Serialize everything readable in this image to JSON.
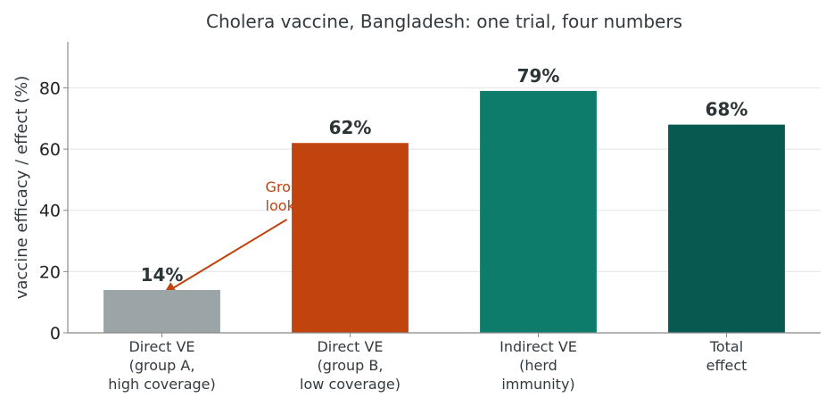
{
  "chart_data": {
    "type": "bar",
    "title": "Cholera vaccine, Bangladesh: one trial, four numbers",
    "ylabel": "vaccine efficacy / effect (%)",
    "xlabel": "",
    "ylim": [
      0,
      95
    ],
    "yticks": [
      0,
      20,
      40,
      60,
      80
    ],
    "grid": "horizontal",
    "categories": [
      [
        "Direct VE",
        "(group A,",
        "high coverage)"
      ],
      [
        "Direct VE",
        "(group B,",
        "low coverage)"
      ],
      [
        "Indirect VE",
        "(herd",
        "immunity)"
      ],
      [
        "Total",
        "effect"
      ]
    ],
    "values": [
      14,
      62,
      79,
      68
    ],
    "value_labels": [
      "14%",
      "62%",
      "79%",
      "68%"
    ],
    "colors": [
      "#9ba4a6",
      "#c1440e",
      "#0e7c6b",
      "#075a50"
    ],
    "annotation": {
      "lines": [
        "Gro",
        "look"
      ],
      "color": "#c1440e",
      "arrow_to_category": 0,
      "arrow_to_value": 14
    }
  }
}
